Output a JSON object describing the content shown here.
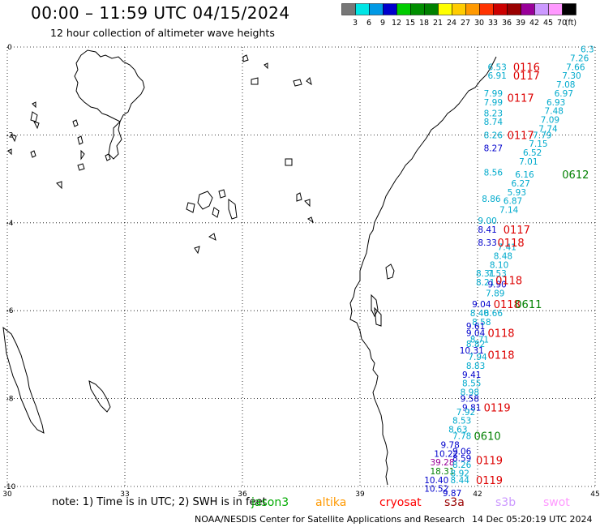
{
  "title": "00:00 – 11:59 UTC 04/15/2024",
  "subtitle": "12 hour collection of altimeter wave heights",
  "colorbar": {
    "unit": "(ft)",
    "levels": [
      "3",
      "6",
      "9",
      "12",
      "15",
      "18",
      "21",
      "24",
      "27",
      "30",
      "33",
      "36",
      "39",
      "42",
      "45",
      "70"
    ],
    "colors": [
      "#777777",
      "#00e5e5",
      "#0099e5",
      "#0000cc",
      "#00cc00",
      "#008f00",
      "#008000",
      "#ffff00",
      "#ffcc00",
      "#ff9900",
      "#ff3300",
      "#cc0000",
      "#990000",
      "#990099",
      "#cc99ff",
      "#ff99ff",
      "#000000"
    ]
  },
  "axes": {
    "x_ticks": [
      "30",
      "33",
      "36",
      "39",
      "42",
      "45"
    ],
    "y_ticks": [
      "0",
      "-2",
      "-4",
      "-6",
      "-8",
      "-10"
    ],
    "x_range": [
      30,
      45
    ],
    "y_range": [
      -10,
      0
    ]
  },
  "note": "note:  1) Time is in UTC;  2) SWH is in feet",
  "satellites": [
    {
      "name": "jason3",
      "color": "#00aa00"
    },
    {
      "name": "altika",
      "color": "#ff9900"
    },
    {
      "name": "cryosat",
      "color": "#ff0000"
    },
    {
      "name": "s3a",
      "color": "#990000"
    },
    {
      "name": "s3b",
      "color": "#cc99ff"
    },
    {
      "name": "swot",
      "color": "#ff99ff"
    }
  ],
  "credit": "NOAA/NESDIS Center for Satellite Applications and Research",
  "timestamp": "14 Dec 05:20:19 UTC 2024",
  "obs_heights": [
    {
      "v": "6.3",
      "lon": 44.8,
      "lat": -0.05,
      "c": "#00aacc"
    },
    {
      "v": "7.26",
      "lon": 44.6,
      "lat": -0.25,
      "c": "#00aacc"
    },
    {
      "v": "7.66",
      "lon": 44.5,
      "lat": -0.45,
      "c": "#00aacc"
    },
    {
      "v": "7.30",
      "lon": 44.4,
      "lat": -0.65,
      "c": "#00aacc"
    },
    {
      "v": "7.08",
      "lon": 44.25,
      "lat": -0.85,
      "c": "#00aacc"
    },
    {
      "v": "6.97",
      "lon": 44.2,
      "lat": -1.05,
      "c": "#00aacc"
    },
    {
      "v": "6.93",
      "lon": 44.0,
      "lat": -1.25,
      "c": "#00aacc"
    },
    {
      "v": "7.48",
      "lon": 43.95,
      "lat": -1.45,
      "c": "#00aacc"
    },
    {
      "v": "7.09",
      "lon": 43.85,
      "lat": -1.65,
      "c": "#00aacc"
    },
    {
      "v": "7.74",
      "lon": 43.8,
      "lat": -1.85,
      "c": "#00aacc"
    },
    {
      "v": "7.79",
      "lon": 43.65,
      "lat": -2.0,
      "c": "#00aacc"
    },
    {
      "v": "7.15",
      "lon": 43.55,
      "lat": -2.2,
      "c": "#00aacc"
    },
    {
      "v": "6.52",
      "lon": 43.4,
      "lat": -2.4,
      "c": "#00aacc"
    },
    {
      "v": "7.01",
      "lon": 43.3,
      "lat": -2.6,
      "c": "#00aacc"
    },
    {
      "v": "6.16",
      "lon": 43.2,
      "lat": -2.9,
      "c": "#00aacc"
    },
    {
      "v": "6.27",
      "lon": 43.1,
      "lat": -3.1,
      "c": "#00aacc"
    },
    {
      "v": "5.93",
      "lon": 43.0,
      "lat": -3.3,
      "c": "#00aacc"
    },
    {
      "v": "6.87",
      "lon": 42.9,
      "lat": -3.5,
      "c": "#00aacc"
    },
    {
      "v": "7.14",
      "lon": 42.8,
      "lat": -3.7,
      "c": "#00aacc"
    },
    {
      "v": "6.53",
      "lon": 42.5,
      "lat": -0.45,
      "c": "#00aacc"
    },
    {
      "v": "6.91",
      "lon": 42.5,
      "lat": -0.65,
      "c": "#00aacc"
    },
    {
      "v": "7.99",
      "lon": 42.4,
      "lat": -1.05,
      "c": "#00aacc"
    },
    {
      "v": "7.99",
      "lon": 42.4,
      "lat": -1.25,
      "c": "#00aacc"
    },
    {
      "v": "8.23",
      "lon": 42.4,
      "lat": -1.5,
      "c": "#00aacc"
    },
    {
      "v": "8.74",
      "lon": 42.4,
      "lat": -1.7,
      "c": "#00aacc"
    },
    {
      "v": "8.26",
      "lon": 42.4,
      "lat": -2.0,
      "c": "#00aacc"
    },
    {
      "v": "8.27",
      "lon": 42.4,
      "lat": -2.3,
      "c": "#0000cc"
    },
    {
      "v": "8.56",
      "lon": 42.4,
      "lat": -2.85,
      "c": "#00aacc"
    },
    {
      "v": "8.86",
      "lon": 42.35,
      "lat": -3.45,
      "c": "#00aacc"
    },
    {
      "v": "9.00",
      "lon": 42.25,
      "lat": -3.95,
      "c": "#00aacc"
    },
    {
      "v": "8.41",
      "lon": 42.25,
      "lat": -4.15,
      "c": "#0000cc"
    },
    {
      "v": "8.33",
      "lon": 42.25,
      "lat": -4.45,
      "c": "#0000cc"
    },
    {
      "v": "7.41",
      "lon": 42.75,
      "lat": -4.55,
      "c": "#00aacc"
    },
    {
      "v": "8.48",
      "lon": 42.65,
      "lat": -4.75,
      "c": "#00aacc"
    },
    {
      "v": "8.10",
      "lon": 42.55,
      "lat": -4.95,
      "c": "#00aacc"
    },
    {
      "v": "8.31",
      "lon": 42.2,
      "lat": -5.15,
      "c": "#00aacc"
    },
    {
      "v": "7.53",
      "lon": 42.5,
      "lat": -5.15,
      "c": "#00aacc"
    },
    {
      "v": "8.21",
      "lon": 42.2,
      "lat": -5.35,
      "c": "#00aacc"
    },
    {
      "v": "9.90",
      "lon": 42.5,
      "lat": -5.4,
      "c": "#0000cc"
    },
    {
      "v": "7.89",
      "lon": 42.45,
      "lat": -5.6,
      "c": "#00aacc"
    },
    {
      "v": "9.04",
      "lon": 42.1,
      "lat": -5.85,
      "c": "#0000cc"
    },
    {
      "v": "8.40",
      "lon": 42.05,
      "lat": -6.05,
      "c": "#00aacc"
    },
    {
      "v": "8.66",
      "lon": 42.4,
      "lat": -6.05,
      "c": "#00aacc"
    },
    {
      "v": "8.58",
      "lon": 42.1,
      "lat": -6.25,
      "c": "#00aacc"
    },
    {
      "v": "9.61",
      "lon": 41.95,
      "lat": -6.35,
      "c": "#0000cc"
    },
    {
      "v": "9.04",
      "lon": 41.95,
      "lat": -6.5,
      "c": "#0000cc"
    },
    {
      "v": "8.71",
      "lon": 42.05,
      "lat": -6.65,
      "c": "#00aacc"
    },
    {
      "v": "8.82",
      "lon": 41.95,
      "lat": -6.75,
      "c": "#00aacc"
    },
    {
      "v": "10.31",
      "lon": 41.85,
      "lat": -6.9,
      "c": "#0000cc"
    },
    {
      "v": "7.94",
      "lon": 42.0,
      "lat": -7.05,
      "c": "#00aacc"
    },
    {
      "v": "8.83",
      "lon": 41.95,
      "lat": -7.25,
      "c": "#00aacc"
    },
    {
      "v": "9.41",
      "lon": 41.85,
      "lat": -7.45,
      "c": "#0000cc"
    },
    {
      "v": "8.55",
      "lon": 41.85,
      "lat": -7.65,
      "c": "#00aacc"
    },
    {
      "v": "8.98",
      "lon": 41.8,
      "lat": -7.85,
      "c": "#00aacc"
    },
    {
      "v": "9.58",
      "lon": 41.8,
      "lat": -8.0,
      "c": "#0000cc"
    },
    {
      "v": "9.81",
      "lon": 41.85,
      "lat": -8.2,
      "c": "#0000cc"
    },
    {
      "v": "7.92",
      "lon": 41.7,
      "lat": -8.3,
      "c": "#00aacc"
    },
    {
      "v": "8.53",
      "lon": 41.6,
      "lat": -8.5,
      "c": "#00aacc"
    },
    {
      "v": "8.63",
      "lon": 41.5,
      "lat": -8.7,
      "c": "#00aacc"
    },
    {
      "v": "7.78",
      "lon": 41.6,
      "lat": -8.85,
      "c": "#00aacc"
    },
    {
      "v": "9.78",
      "lon": 41.3,
      "lat": -9.05,
      "c": "#0000cc"
    },
    {
      "v": "10.22",
      "lon": 41.2,
      "lat": -9.25,
      "c": "#0000cc"
    },
    {
      "v": "9.06",
      "lon": 41.6,
      "lat": -9.2,
      "c": "#0000cc"
    },
    {
      "v": "39.28",
      "lon": 41.1,
      "lat": -9.45,
      "c": "#990099"
    },
    {
      "v": "8.59",
      "lon": 41.6,
      "lat": -9.35,
      "c": "#0000cc"
    },
    {
      "v": "8.26",
      "lon": 41.6,
      "lat": -9.5,
      "c": "#00aacc"
    },
    {
      "v": "18.31",
      "lon": 41.1,
      "lat": -9.65,
      "c": "#008000"
    },
    {
      "v": "8.92",
      "lon": 41.55,
      "lat": -9.7,
      "c": "#00aacc"
    },
    {
      "v": "10.40",
      "lon": 40.95,
      "lat": -9.85,
      "c": "#0000cc"
    },
    {
      "v": "8.44",
      "lon": 41.55,
      "lat": -9.85,
      "c": "#00aacc"
    },
    {
      "v": "10.52",
      "lon": 40.95,
      "lat": -10.05,
      "c": "#0000cc"
    },
    {
      "v": "9.87",
      "lon": 41.35,
      "lat": -10.15,
      "c": "#0000cc"
    }
  ],
  "obs_times": [
    {
      "v": "0116",
      "lon": 43.25,
      "lat": -0.45,
      "c": "#dd0000"
    },
    {
      "v": "0117",
      "lon": 43.25,
      "lat": -0.65,
      "c": "#dd0000"
    },
    {
      "v": "0117",
      "lon": 43.1,
      "lat": -1.15,
      "c": "#dd0000"
    },
    {
      "v": "0117",
      "lon": 43.1,
      "lat": -2.0,
      "c": "#dd0000"
    },
    {
      "v": "0612",
      "lon": 44.5,
      "lat": -2.9,
      "c": "#008000"
    },
    {
      "v": "0117",
      "lon": 43.0,
      "lat": -4.15,
      "c": "#dd0000"
    },
    {
      "v": "0118",
      "lon": 42.85,
      "lat": -4.45,
      "c": "#dd0000"
    },
    {
      "v": "0118",
      "lon": 42.8,
      "lat": -5.3,
      "c": "#dd0000"
    },
    {
      "v": "0118",
      "lon": 42.75,
      "lat": -5.85,
      "c": "#dd0000"
    },
    {
      "v": "0611",
      "lon": 43.3,
      "lat": -5.85,
      "c": "#008000"
    },
    {
      "v": "0118",
      "lon": 42.6,
      "lat": -6.5,
      "c": "#dd0000"
    },
    {
      "v": "0118",
      "lon": 42.6,
      "lat": -7.0,
      "c": "#dd0000"
    },
    {
      "v": "0119",
      "lon": 42.5,
      "lat": -8.2,
      "c": "#dd0000"
    },
    {
      "v": "0610",
      "lon": 42.25,
      "lat": -8.85,
      "c": "#008000"
    },
    {
      "v": "0119",
      "lon": 42.3,
      "lat": -9.4,
      "c": "#dd0000"
    },
    {
      "v": "0119",
      "lon": 42.3,
      "lat": -9.85,
      "c": "#dd0000"
    }
  ]
}
